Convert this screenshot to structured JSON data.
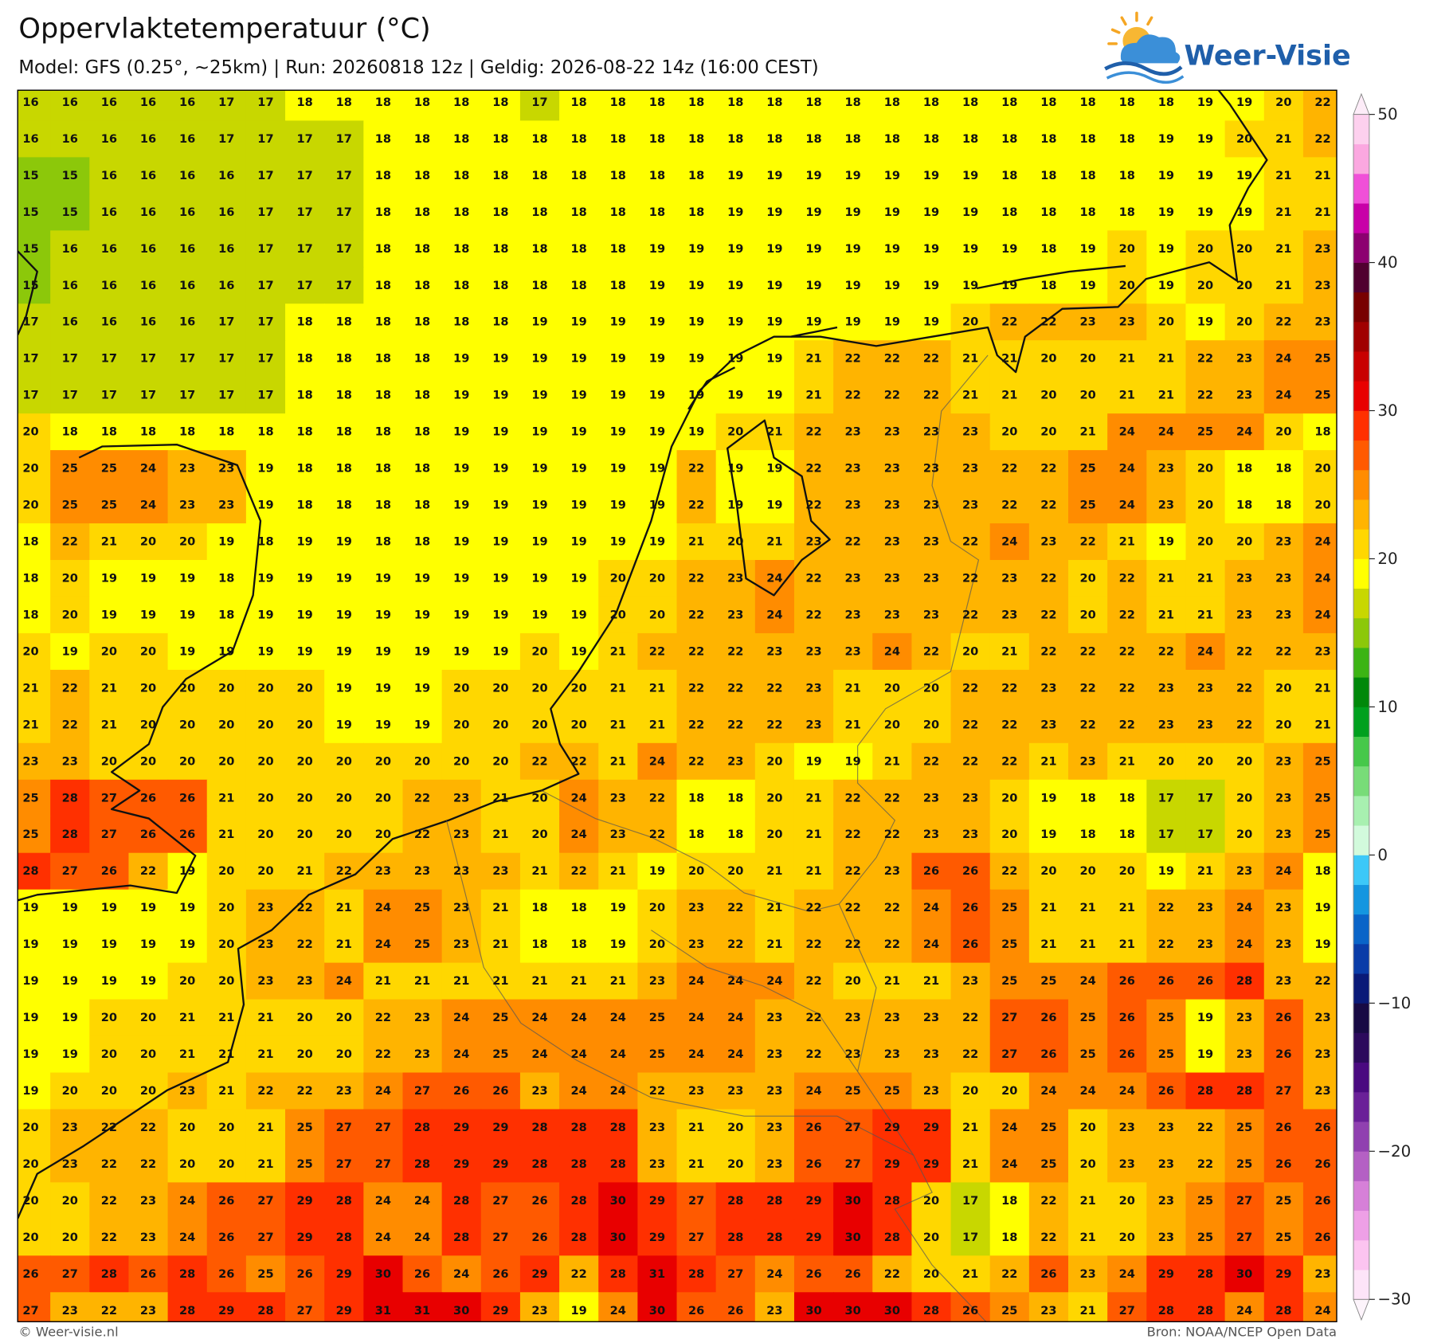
{
  "title": "Oppervlaktetemperatuur (°C)",
  "subtitle": "Model: GFS (0.25°, ~25km)  |  Run: 20260818 12z  |  Geldig: 2026-08-22 14z (16:00 CEST)",
  "logo_text": "Weer-Visie",
  "footer_left": "© Weer-visie.nl",
  "footer_right": "Bron: NOAA/NCEP Open Data",
  "colorbar": {
    "lim": [
      -30,
      50
    ],
    "ticks": [
      {
        "value": -30,
        "label": "−30"
      },
      {
        "value": -20,
        "label": "−20"
      },
      {
        "value": -10,
        "label": "−10"
      },
      0,
      10,
      20,
      30,
      40,
      50
    ],
    "colors": [
      "#fde4f8",
      "#fcc4f0",
      "#eea0e6",
      "#d680d8",
      "#b460c4",
      "#9040b0",
      "#6a2098",
      "#4a0a80",
      "#2c0a5c",
      "#180a44",
      "#0a1a78",
      "#0a3ca8",
      "#0a64c8",
      "#1496e0",
      "#3cc8f8",
      "#d2fadc",
      "#a8f0b0",
      "#78dc78",
      "#46c84a",
      "#00a01e",
      "#00880a",
      "#3cb414",
      "#8cc80a",
      "#c8d700",
      "#ffff00",
      "#ffd700",
      "#ffb400",
      "#ff8c00",
      "#ff5a00",
      "#ff3000",
      "#e80000",
      "#c80000",
      "#a00000",
      "#780000",
      "#500030",
      "#8c0070",
      "#c800a8",
      "#f050d8",
      "#fba8e0",
      "#fdd0ee"
    ]
  },
  "map": {
    "rows": [
      [
        16,
        16,
        16,
        16,
        16,
        17,
        17,
        18,
        18,
        18,
        18,
        18,
        18,
        17,
        18,
        18,
        18,
        18,
        18,
        18,
        18,
        18,
        18,
        18,
        18,
        18,
        18,
        18,
        18,
        18,
        19,
        19,
        20,
        22
      ],
      [
        16,
        16,
        16,
        16,
        16,
        17,
        17,
        17,
        17,
        18,
        18,
        18,
        18,
        18,
        18,
        18,
        18,
        18,
        18,
        18,
        18,
        18,
        18,
        18,
        18,
        18,
        18,
        18,
        18,
        19,
        19,
        20,
        21,
        22
      ],
      [
        15,
        15,
        16,
        16,
        16,
        16,
        17,
        17,
        17,
        18,
        18,
        18,
        18,
        18,
        18,
        18,
        18,
        18,
        19,
        19,
        19,
        19,
        19,
        19,
        19,
        18,
        18,
        18,
        18,
        19,
        19,
        19,
        21,
        21
      ],
      [
        15,
        15,
        16,
        16,
        16,
        16,
        17,
        17,
        17,
        18,
        18,
        18,
        18,
        18,
        18,
        18,
        18,
        18,
        19,
        19,
        19,
        19,
        19,
        19,
        19,
        18,
        18,
        18,
        18,
        19,
        19,
        19,
        21,
        21
      ],
      [
        15,
        16,
        16,
        16,
        16,
        16,
        17,
        17,
        17,
        18,
        18,
        18,
        18,
        18,
        18,
        18,
        19,
        19,
        19,
        19,
        19,
        19,
        19,
        19,
        19,
        19,
        18,
        19,
        20,
        19,
        20,
        20,
        21,
        23
      ],
      [
        15,
        16,
        16,
        16,
        16,
        16,
        17,
        17,
        17,
        18,
        18,
        18,
        18,
        18,
        18,
        18,
        19,
        19,
        19,
        19,
        19,
        19,
        19,
        19,
        19,
        19,
        18,
        19,
        20,
        19,
        20,
        20,
        21,
        23
      ],
      [
        17,
        16,
        16,
        16,
        16,
        17,
        17,
        18,
        18,
        18,
        18,
        18,
        18,
        19,
        19,
        19,
        19,
        19,
        19,
        19,
        19,
        19,
        19,
        19,
        20,
        22,
        22,
        23,
        23,
        20,
        19,
        20,
        22,
        23
      ],
      [
        17,
        17,
        17,
        17,
        17,
        17,
        17,
        18,
        18,
        18,
        18,
        19,
        19,
        19,
        19,
        19,
        19,
        19,
        19,
        19,
        21,
        22,
        22,
        22,
        21,
        21,
        20,
        20,
        21,
        21,
        22,
        23,
        24,
        25
      ],
      [
        17,
        17,
        17,
        17,
        17,
        17,
        17,
        18,
        18,
        18,
        18,
        19,
        19,
        19,
        19,
        19,
        19,
        19,
        19,
        19,
        21,
        22,
        22,
        22,
        21,
        21,
        20,
        20,
        21,
        21,
        22,
        23,
        24,
        25
      ],
      [
        20,
        18,
        18,
        18,
        18,
        18,
        18,
        18,
        18,
        18,
        18,
        19,
        19,
        19,
        19,
        19,
        19,
        19,
        20,
        21,
        22,
        23,
        23,
        23,
        23,
        20,
        20,
        21,
        24,
        24,
        25,
        24,
        20,
        18
      ],
      [
        20,
        25,
        25,
        24,
        23,
        23,
        19,
        18,
        18,
        18,
        18,
        19,
        19,
        19,
        19,
        19,
        19,
        22,
        19,
        19,
        22,
        23,
        23,
        23,
        23,
        22,
        22,
        25,
        24,
        23,
        20,
        18,
        18,
        20
      ],
      [
        20,
        25,
        25,
        24,
        23,
        23,
        19,
        18,
        18,
        18,
        18,
        19,
        19,
        19,
        19,
        19,
        19,
        22,
        19,
        19,
        22,
        23,
        23,
        23,
        23,
        22,
        22,
        25,
        24,
        23,
        20,
        18,
        18,
        20
      ],
      [
        18,
        22,
        21,
        20,
        20,
        19,
        18,
        19,
        19,
        18,
        18,
        19,
        19,
        19,
        19,
        19,
        19,
        21,
        20,
        21,
        23,
        22,
        23,
        23,
        22,
        24,
        23,
        22,
        21,
        19,
        20,
        20,
        23,
        24
      ],
      [
        18,
        20,
        19,
        19,
        19,
        18,
        19,
        19,
        19,
        19,
        19,
        19,
        19,
        19,
        19,
        20,
        20,
        22,
        23,
        24,
        22,
        23,
        23,
        23,
        22,
        23,
        22,
        20,
        22,
        21,
        21,
        23,
        23,
        24
      ],
      [
        18,
        20,
        19,
        19,
        19,
        18,
        19,
        19,
        19,
        19,
        19,
        19,
        19,
        19,
        19,
        20,
        20,
        22,
        23,
        24,
        22,
        23,
        23,
        23,
        22,
        23,
        22,
        20,
        22,
        21,
        21,
        23,
        23,
        24
      ],
      [
        20,
        19,
        20,
        20,
        19,
        19,
        19,
        19,
        19,
        19,
        19,
        19,
        19,
        20,
        19,
        21,
        22,
        22,
        22,
        23,
        23,
        23,
        24,
        22,
        20,
        21,
        22,
        22,
        22,
        22,
        24,
        22,
        22,
        23
      ],
      [
        21,
        22,
        21,
        20,
        20,
        20,
        20,
        20,
        19,
        19,
        19,
        20,
        20,
        20,
        20,
        21,
        21,
        22,
        22,
        22,
        23,
        21,
        20,
        20,
        22,
        22,
        23,
        22,
        22,
        23,
        23,
        22,
        20,
        21
      ],
      [
        21,
        22,
        21,
        20,
        20,
        20,
        20,
        20,
        19,
        19,
        19,
        20,
        20,
        20,
        20,
        21,
        21,
        22,
        22,
        22,
        23,
        21,
        20,
        20,
        22,
        22,
        23,
        22,
        22,
        23,
        23,
        22,
        20,
        21
      ],
      [
        23,
        23,
        20,
        20,
        20,
        20,
        20,
        20,
        20,
        20,
        20,
        20,
        20,
        22,
        22,
        21,
        24,
        22,
        23,
        20,
        19,
        19,
        21,
        22,
        22,
        22,
        21,
        23,
        21,
        20,
        20,
        20,
        23,
        25
      ],
      [
        25,
        28,
        27,
        26,
        26,
        21,
        20,
        20,
        20,
        20,
        22,
        23,
        21,
        20,
        24,
        23,
        22,
        18,
        18,
        20,
        21,
        22,
        22,
        23,
        23,
        20,
        19,
        18,
        18,
        17,
        17,
        20,
        23,
        25
      ],
      [
        25,
        28,
        27,
        26,
        26,
        21,
        20,
        20,
        20,
        20,
        22,
        23,
        21,
        20,
        24,
        23,
        22,
        18,
        18,
        20,
        21,
        22,
        22,
        23,
        23,
        20,
        19,
        18,
        18,
        17,
        17,
        20,
        23,
        25
      ],
      [
        28,
        27,
        26,
        22,
        19,
        20,
        20,
        21,
        22,
        23,
        23,
        23,
        23,
        21,
        22,
        21,
        19,
        20,
        20,
        21,
        21,
        22,
        23,
        26,
        26,
        22,
        20,
        20,
        20,
        19,
        21,
        23,
        24,
        18
      ],
      [
        19,
        19,
        19,
        19,
        19,
        20,
        23,
        22,
        21,
        24,
        25,
        23,
        21,
        18,
        18,
        19,
        20,
        23,
        22,
        21,
        22,
        22,
        22,
        24,
        26,
        25,
        21,
        21,
        21,
        22,
        23,
        24,
        23,
        19
      ],
      [
        19,
        19,
        19,
        19,
        19,
        20,
        23,
        22,
        21,
        24,
        25,
        23,
        21,
        18,
        18,
        19,
        20,
        23,
        22,
        21,
        22,
        22,
        22,
        24,
        26,
        25,
        21,
        21,
        21,
        22,
        23,
        24,
        23,
        19
      ],
      [
        19,
        19,
        19,
        19,
        20,
        20,
        23,
        23,
        24,
        21,
        21,
        21,
        21,
        21,
        21,
        21,
        23,
        24,
        24,
        24,
        22,
        20,
        21,
        21,
        23,
        25,
        25,
        24,
        26,
        26,
        26,
        28,
        23,
        22
      ],
      [
        19,
        19,
        20,
        20,
        21,
        21,
        21,
        20,
        20,
        22,
        23,
        24,
        25,
        24,
        24,
        24,
        25,
        24,
        24,
        23,
        22,
        23,
        23,
        23,
        22,
        27,
        26,
        25,
        26,
        25,
        19,
        23,
        26,
        23
      ],
      [
        19,
        19,
        20,
        20,
        21,
        21,
        21,
        20,
        20,
        22,
        23,
        24,
        25,
        24,
        24,
        24,
        25,
        24,
        24,
        23,
        22,
        23,
        23,
        23,
        22,
        27,
        26,
        25,
        26,
        25,
        19,
        23,
        26,
        23
      ],
      [
        19,
        20,
        20,
        20,
        23,
        21,
        22,
        22,
        23,
        24,
        27,
        26,
        26,
        23,
        24,
        24,
        22,
        23,
        23,
        23,
        24,
        25,
        25,
        23,
        20,
        20,
        24,
        24,
        24,
        26,
        28,
        28,
        27,
        23
      ],
      [
        20,
        23,
        22,
        22,
        20,
        20,
        21,
        25,
        27,
        27,
        28,
        29,
        29,
        28,
        28,
        28,
        23,
        21,
        20,
        23,
        26,
        27,
        29,
        29,
        21,
        24,
        25,
        20,
        23,
        23,
        22,
        25,
        26,
        26
      ],
      [
        20,
        23,
        22,
        22,
        20,
        20,
        21,
        25,
        27,
        27,
        28,
        29,
        29,
        28,
        28,
        28,
        23,
        21,
        20,
        23,
        26,
        27,
        29,
        29,
        21,
        24,
        25,
        20,
        23,
        23,
        22,
        25,
        26,
        26
      ],
      [
        20,
        20,
        22,
        23,
        24,
        26,
        27,
        29,
        28,
        24,
        24,
        28,
        27,
        26,
        28,
        30,
        29,
        27,
        28,
        28,
        29,
        30,
        28,
        20,
        17,
        18,
        22,
        21,
        20,
        23,
        25,
        27,
        25,
        26
      ],
      [
        20,
        20,
        22,
        23,
        24,
        26,
        27,
        29,
        28,
        24,
        24,
        28,
        27,
        26,
        28,
        30,
        29,
        27,
        28,
        28,
        29,
        30,
        28,
        20,
        17,
        18,
        22,
        21,
        20,
        23,
        25,
        27,
        25,
        26
      ],
      [
        26,
        27,
        28,
        26,
        28,
        26,
        25,
        26,
        29,
        30,
        26,
        24,
        26,
        29,
        22,
        28,
        31,
        28,
        27,
        24,
        26,
        26,
        22,
        20,
        21,
        22,
        26,
        23,
        24,
        29,
        28,
        30,
        29,
        23
      ],
      [
        27,
        23,
        22,
        23,
        28,
        29,
        28,
        27,
        29,
        31,
        31,
        30,
        29,
        23,
        19,
        24,
        30,
        26,
        26,
        23,
        30,
        30,
        30,
        28,
        26,
        25,
        23,
        21,
        27,
        28,
        28,
        24,
        28,
        24
      ]
    ]
  }
}
